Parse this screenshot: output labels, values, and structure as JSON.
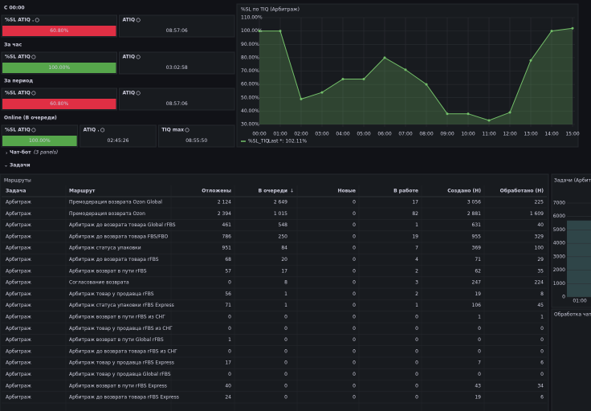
{
  "sections": [
    {
      "label": "С 00:00",
      "panels": [
        {
          "title": "%SL ATIQ .",
          "value": "60.80%",
          "color": "#e02f44"
        },
        {
          "title": "ATIQ",
          "value": "08:57:06"
        }
      ]
    },
    {
      "label": "За час",
      "panels": [
        {
          "title": "%SL ATIQ",
          "value": "100.00%",
          "color": "#56a64b"
        },
        {
          "title": "ATIQ",
          "value": "03:02:58"
        }
      ]
    },
    {
      "label": "За период",
      "panels": [
        {
          "title": "%SL ATIQ",
          "value": "60.80%",
          "color": "#e02f44"
        },
        {
          "title": "ATIQ",
          "value": "08:57:06"
        }
      ]
    },
    {
      "label": "Online (В очереди)",
      "panels": [
        {
          "title": "%SL ATIQ",
          "value": "100.00%",
          "color": "#56a64b"
        },
        {
          "title": "ATIQ .",
          "value": "02:45:26"
        },
        {
          "title": "TIQ max",
          "value": "08:55:50"
        }
      ]
    }
  ],
  "chart_data": {
    "type": "area",
    "title": "%SL по TIQ (Арбитраж)",
    "categories": [
      "00:00",
      "01:00",
      "02:00",
      "03:00",
      "04:00",
      "05:00",
      "06:00",
      "07:00",
      "08:00",
      "09:00",
      "10:00",
      "11:00",
      "12:00",
      "13:00",
      "14:00",
      "15:00"
    ],
    "series": [
      {
        "name": "%SL_TIQ",
        "color": "#73bf69",
        "values": [
          100,
          100,
          49,
          54,
          64,
          64,
          80,
          71,
          60,
          38,
          38,
          33,
          39,
          78,
          100,
          102
        ]
      }
    ],
    "legend_stat": "Last *: 102.11%",
    "ylim": [
      30,
      110
    ],
    "yticks": [
      {
        "value": 30,
        "label": "30.00%"
      },
      {
        "value": 40,
        "label": "40.00%"
      },
      {
        "value": 50,
        "label": "50.00%"
      },
      {
        "value": 60,
        "label": "60.00%"
      },
      {
        "value": 70,
        "label": "70.00%"
      },
      {
        "value": 80,
        "label": "80.00%"
      },
      {
        "value": 90,
        "label": "90.00%"
      },
      {
        "value": 100,
        "label": "100.00%"
      },
      {
        "value": 110,
        "label": "110.00%"
      }
    ],
    "grid": true
  },
  "collapsed_rows": [
    {
      "label": "Чат-бот",
      "note": "(3 panels)"
    },
    {
      "label": "Задачи"
    }
  ],
  "table": {
    "title": "Маршруты",
    "columns": [
      "Задача",
      "Маршрут",
      "Отложены",
      "В очереди",
      "Новые",
      "В работе",
      "Создано (Н)",
      "Обработано (Н)"
    ],
    "rows": [
      [
        "Арбитраж",
        "Премодерация возврата Ozon Global",
        "2 124",
        "2 649",
        "0",
        "17",
        "3 056",
        "225"
      ],
      [
        "Арбитраж",
        "Премодерация возврата Ozon",
        "2 394",
        "1 015",
        "0",
        "82",
        "2 881",
        "1 609"
      ],
      [
        "Арбитраж",
        "Арбитраж до возврата товара Global rFBS",
        "461",
        "548",
        "0",
        "1",
        "631",
        "40"
      ],
      [
        "Арбитраж",
        "Арбитраж до возврата товара FBS/FBO",
        "786",
        "250",
        "0",
        "19",
        "955",
        "329"
      ],
      [
        "Арбитраж",
        "Арбитраж статуса упаковки",
        "951",
        "84",
        "0",
        "7",
        "369",
        "100"
      ],
      [
        "Арбитраж",
        "Арбитраж до возврата товара rFBS",
        "68",
        "20",
        "0",
        "4",
        "71",
        "29"
      ],
      [
        "Арбитраж",
        "Арбитраж возврат в пути rFBS",
        "57",
        "17",
        "0",
        "2",
        "62",
        "35"
      ],
      [
        "Арбитраж",
        "Согласование возврата",
        "0",
        "8",
        "0",
        "3",
        "247",
        "224"
      ],
      [
        "Арбитраж",
        "Арбитраж товар у продавца rFBS",
        "56",
        "1",
        "0",
        "2",
        "19",
        "8"
      ],
      [
        "Арбитраж",
        "Арбитраж статуса упаковки rFBS Express",
        "71",
        "1",
        "0",
        "1",
        "106",
        "45"
      ],
      [
        "Арбитраж",
        "Арбитраж возврат в пути rFBS из СНГ",
        "0",
        "0",
        "0",
        "0",
        "1",
        "1"
      ],
      [
        "Арбитраж",
        "Арбитраж товар у продавца rFBS из СНГ",
        "0",
        "0",
        "0",
        "0",
        "0",
        "0"
      ],
      [
        "Арбитраж",
        "Арбитраж возврат в пути Global rFBS",
        "1",
        "0",
        "0",
        "0",
        "0",
        "0"
      ],
      [
        "Арбитраж",
        "Арбитраж до возврата товара rFBS из СНГ",
        "0",
        "0",
        "0",
        "0",
        "0",
        "0"
      ],
      [
        "Арбитраж",
        "Арбитраж товар у продавца rFBS Express",
        "17",
        "0",
        "0",
        "0",
        "7",
        "6"
      ],
      [
        "Арбитраж",
        "Арбитраж товар у продавца Global rFBS",
        "0",
        "0",
        "0",
        "0",
        "0",
        "0"
      ],
      [
        "Арбитраж",
        "Арбитраж возврат в пути rFBS Express",
        "40",
        "0",
        "0",
        "0",
        "43",
        "34"
      ],
      [
        "Арбитраж",
        "Арбитраж до возврата товара rFBS Express",
        "24",
        "0",
        "0",
        "0",
        "19",
        "6"
      ]
    ]
  },
  "side_panels": [
    {
      "title": "Задачи (Арбитраж",
      "ylim": [
        0,
        7000
      ],
      "yticks": [
        0,
        1000,
        2000,
        3000,
        4000,
        5000,
        6000,
        7000
      ],
      "xtick": "01:00"
    },
    {
      "title": "Обработка чато"
    }
  ]
}
